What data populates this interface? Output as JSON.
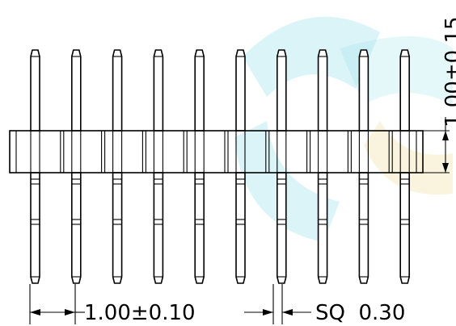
{
  "header": {
    "pin_count": 10
  },
  "dimensions": {
    "pitch_label": "1.00±0.10",
    "pin_size_label": "SQ  0.30",
    "insulator_height_label": "1.00±0.15"
  },
  "colors": {
    "line": "#000000",
    "watermark_cyan": "#3fc6d9",
    "watermark_gold": "#e8c85a"
  }
}
